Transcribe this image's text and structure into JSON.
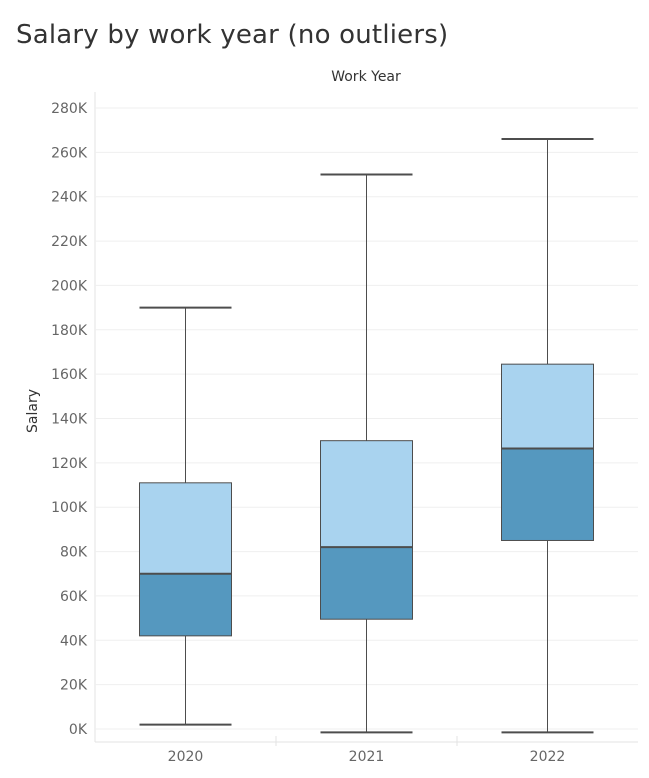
{
  "chart_data": {
    "type": "boxplot",
    "title": "Salary by work year (no outliers)",
    "column_header": "Work Year",
    "ylabel": "Salary",
    "categories": [
      "2020",
      "2021",
      "2022"
    ],
    "ylim": [
      0,
      280000
    ],
    "yticks": [
      0,
      20000,
      40000,
      60000,
      80000,
      100000,
      120000,
      140000,
      160000,
      180000,
      200000,
      220000,
      240000,
      260000,
      280000
    ],
    "ytick_labels": [
      "0K",
      "20K",
      "40K",
      "60K",
      "80K",
      "100K",
      "120K",
      "140K",
      "160K",
      "180K",
      "200K",
      "220K",
      "240K",
      "260K",
      "280K"
    ],
    "boxes": [
      {
        "category": "2020",
        "whisker_low": 2000,
        "q1": 42000,
        "median": 70000,
        "q3": 111000,
        "whisker_high": 190000
      },
      {
        "category": "2021",
        "whisker_low": -1500,
        "q1": 49500,
        "median": 82000,
        "q3": 130000,
        "whisker_high": 250000
      },
      {
        "category": "2022",
        "whisker_low": -1500,
        "q1": 85000,
        "median": 126500,
        "q3": 164500,
        "whisker_high": 266000
      }
    ],
    "colors": {
      "lower_box": "#5598bf",
      "upper_box": "#a9d3ef",
      "stroke": "#4d4d4d",
      "grid": "#efefef",
      "text": "#333333",
      "tick_text": "#666666"
    },
    "grid": true
  }
}
